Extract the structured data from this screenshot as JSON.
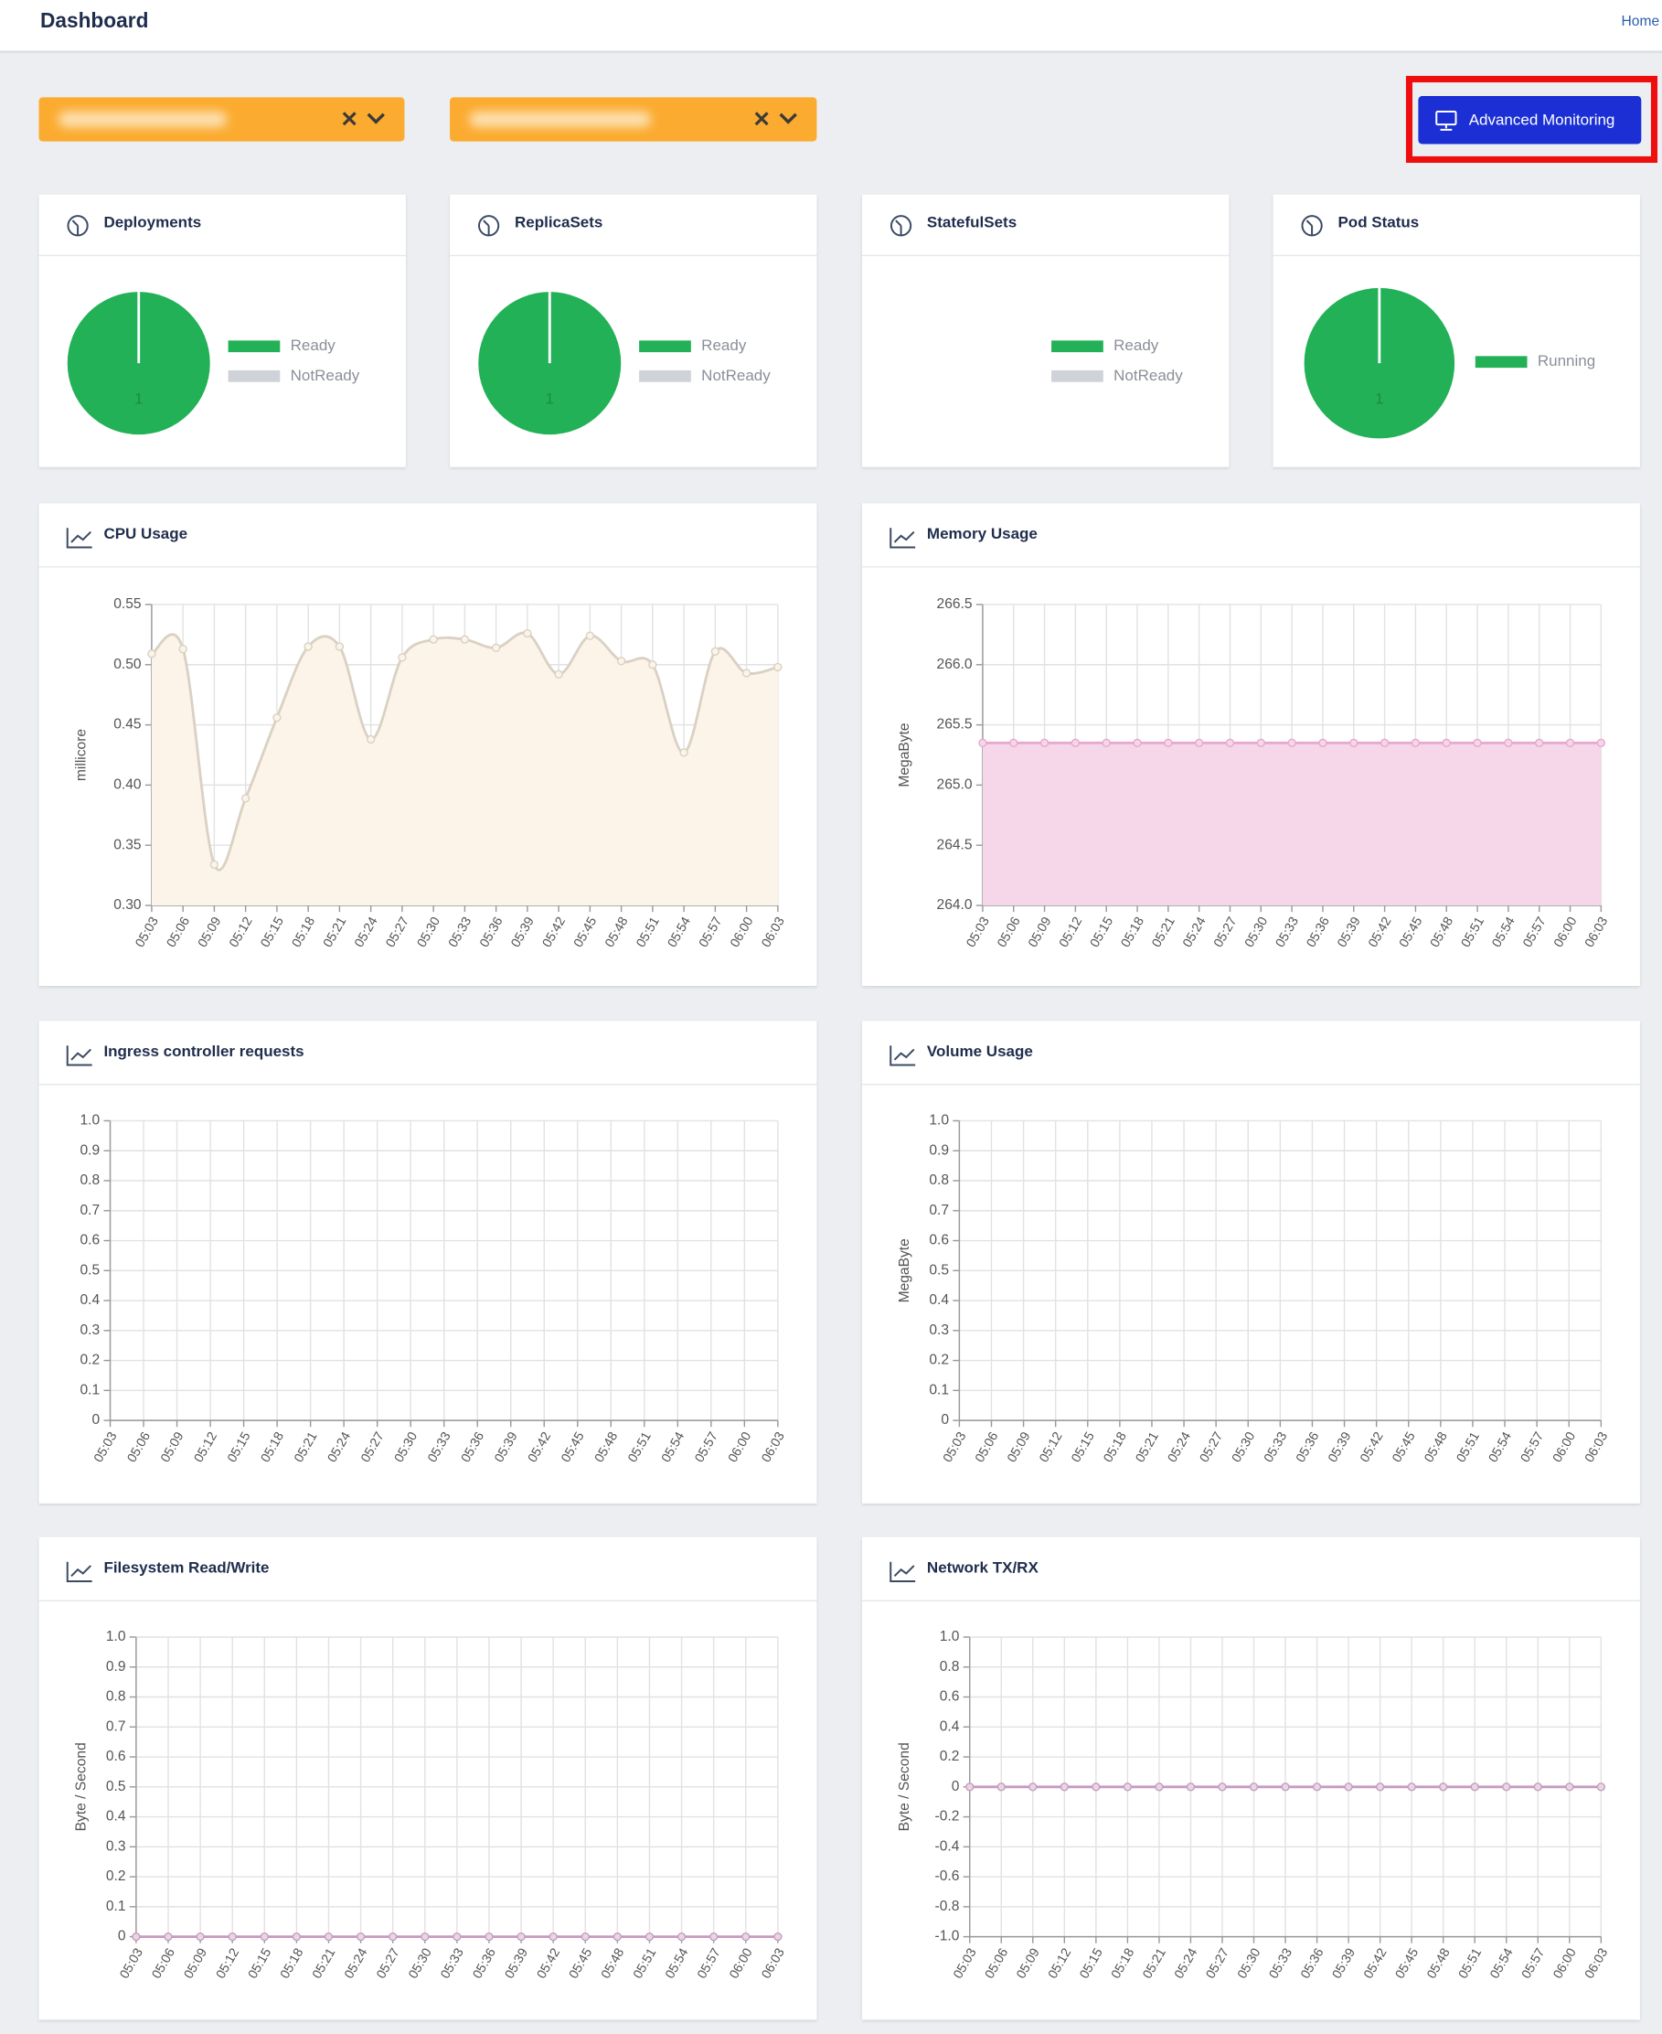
{
  "header": {
    "title": "Dashboard",
    "home": "Home"
  },
  "advanced_button": "Advanced Monitoring",
  "chart_data": [
    {
      "type": "pie",
      "title": "Deployments",
      "categories": [
        "Ready",
        "NotReady"
      ],
      "values": [
        1,
        0
      ],
      "colors": [
        "#22b157",
        "#cfd2d8"
      ]
    },
    {
      "type": "pie",
      "title": "ReplicaSets",
      "categories": [
        "Ready",
        "NotReady"
      ],
      "values": [
        1,
        0
      ],
      "colors": [
        "#22b157",
        "#cfd2d8"
      ]
    },
    {
      "type": "pie",
      "title": "StatefulSets",
      "categories": [
        "Ready",
        "NotReady"
      ],
      "values": [
        0,
        0
      ],
      "colors": [
        "#22b157",
        "#cfd2d8"
      ]
    },
    {
      "type": "pie",
      "title": "Pod Status",
      "categories": [
        "Running"
      ],
      "values": [
        1
      ],
      "colors": [
        "#22b157"
      ]
    },
    {
      "type": "area",
      "title": "CPU Usage",
      "ylabel": "millicore",
      "smooth": true,
      "color": "#d9d1c3",
      "fill": "#fcf4e8",
      "categories": [
        "05:03",
        "05:06",
        "05:09",
        "05:12",
        "05:15",
        "05:18",
        "05:21",
        "05:24",
        "05:27",
        "05:30",
        "05:33",
        "05:36",
        "05:39",
        "05:42",
        "05:45",
        "05:48",
        "05:51",
        "05:54",
        "05:57",
        "06:00",
        "06:03"
      ],
      "values": [
        0.509,
        0.513,
        0.334,
        0.389,
        0.456,
        0.515,
        0.515,
        0.438,
        0.506,
        0.521,
        0.521,
        0.514,
        0.526,
        0.492,
        0.524,
        0.503,
        0.5,
        0.427,
        0.511,
        0.493,
        0.498
      ],
      "ylim": [
        0.3,
        0.55
      ],
      "yticks": [
        {
          "value": 0.3,
          "label": "0.30"
        },
        0.35,
        {
          "value": 0.4,
          "label": "0.40"
        },
        0.45,
        {
          "value": 0.5,
          "label": "0.50"
        },
        0.55
      ],
      "grid": true
    },
    {
      "type": "area",
      "title": "Memory Usage",
      "ylabel": "MegaByte",
      "smooth": false,
      "color": "#e7a9cf",
      "fill": "#f6d6e9",
      "categories": [
        "05:03",
        "05:06",
        "05:09",
        "05:12",
        "05:15",
        "05:18",
        "05:21",
        "05:24",
        "05:27",
        "05:30",
        "05:33",
        "05:36",
        "05:39",
        "05:42",
        "05:45",
        "05:48",
        "05:51",
        "05:54",
        "05:57",
        "06:00",
        "06:03"
      ],
      "values": [
        265.35,
        265.35,
        265.35,
        265.35,
        265.35,
        265.35,
        265.35,
        265.35,
        265.35,
        265.35,
        265.35,
        265.35,
        265.35,
        265.35,
        265.35,
        265.35,
        265.35,
        265.35,
        265.35,
        265.35,
        265.35
      ],
      "ylim": [
        264,
        266.5
      ],
      "yticks": [
        {
          "value": 264,
          "label": "264.0"
        },
        264.5,
        {
          "value": 265,
          "label": "265.0"
        },
        265.5,
        {
          "value": 266,
          "label": "266.0"
        },
        266.5
      ],
      "grid": true
    },
    {
      "type": "line",
      "title": "Ingress controller requests",
      "categories": [
        "05:03",
        "05:06",
        "05:09",
        "05:12",
        "05:15",
        "05:18",
        "05:21",
        "05:24",
        "05:27",
        "05:30",
        "05:33",
        "05:36",
        "05:39",
        "05:42",
        "05:45",
        "05:48",
        "05:51",
        "05:54",
        "05:57",
        "06:00",
        "06:03"
      ],
      "ylim": [
        0,
        1
      ],
      "yticks": [
        0,
        0.1,
        0.2,
        0.3,
        0.4,
        0.5,
        0.6,
        0.7,
        0.8,
        0.9,
        {
          "value": 1,
          "label": "1.0"
        }
      ],
      "grid": true
    },
    {
      "type": "line",
      "title": "Volume Usage",
      "ylabel": "MegaByte",
      "categories": [
        "05:03",
        "05:06",
        "05:09",
        "05:12",
        "05:15",
        "05:18",
        "05:21",
        "05:24",
        "05:27",
        "05:30",
        "05:33",
        "05:36",
        "05:39",
        "05:42",
        "05:45",
        "05:48",
        "05:51",
        "05:54",
        "05:57",
        "06:00",
        "06:03"
      ],
      "ylim": [
        0,
        1
      ],
      "yticks": [
        0,
        0.1,
        0.2,
        0.3,
        0.4,
        0.5,
        0.6,
        0.7,
        0.8,
        0.9,
        {
          "value": 1,
          "label": "1.0"
        }
      ],
      "grid": true
    },
    {
      "type": "line",
      "title": "Filesystem Read/Write",
      "ylabel": "Byte / Second",
      "color": "#c79bbd",
      "categories": [
        "05:03",
        "05:06",
        "05:09",
        "05:12",
        "05:15",
        "05:18",
        "05:21",
        "05:24",
        "05:27",
        "05:30",
        "05:33",
        "05:36",
        "05:39",
        "05:42",
        "05:45",
        "05:48",
        "05:51",
        "05:54",
        "05:57",
        "06:00",
        "06:03"
      ],
      "values": [
        0,
        0,
        0,
        0,
        0,
        0,
        0,
        0,
        0,
        0,
        0,
        0,
        0,
        0,
        0,
        0,
        0,
        0,
        0,
        0,
        0
      ],
      "ylim": [
        0,
        1
      ],
      "yticks": [
        0,
        0.1,
        0.2,
        0.3,
        0.4,
        0.5,
        0.6,
        0.7,
        0.8,
        0.9,
        {
          "value": 1,
          "label": "1.0"
        }
      ],
      "grid": true
    },
    {
      "type": "line",
      "title": "Network TX/RX",
      "ylabel": "Byte / Second",
      "color": "#c79bbd",
      "categories": [
        "05:03",
        "05:06",
        "05:09",
        "05:12",
        "05:15",
        "05:18",
        "05:21",
        "05:24",
        "05:27",
        "05:30",
        "05:33",
        "05:36",
        "05:39",
        "05:42",
        "05:45",
        "05:48",
        "05:51",
        "05:54",
        "05:57",
        "06:00",
        "06:03"
      ],
      "values": [
        0,
        0,
        0,
        0,
        0,
        0,
        0,
        0,
        0,
        0,
        0,
        0,
        0,
        0,
        0,
        0,
        0,
        0,
        0,
        0,
        0
      ],
      "ylim": [
        -1,
        1
      ],
      "yticks": [
        {
          "value": -1,
          "label": "-1.0"
        },
        -0.8,
        -0.6,
        -0.4,
        -0.2,
        0,
        0.2,
        0.4,
        0.6,
        0.8,
        {
          "value": 1,
          "label": "1.0"
        }
      ],
      "grid": true
    }
  ]
}
